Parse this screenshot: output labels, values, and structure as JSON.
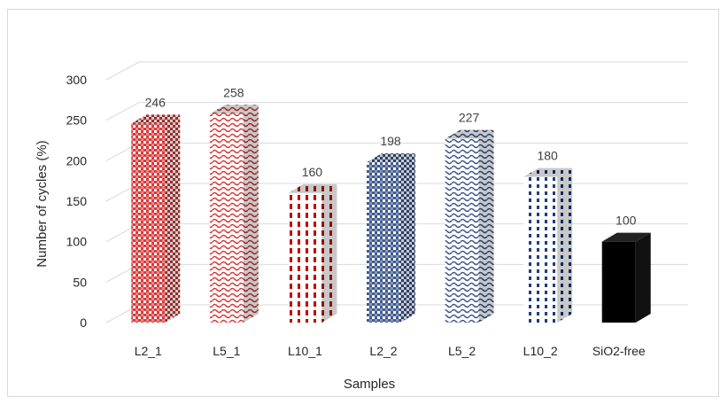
{
  "chart_data": {
    "type": "bar",
    "title": "",
    "xlabel": "Samples",
    "ylabel": "Number of cycles (%)",
    "ylim": [
      0,
      300
    ],
    "yticks": [
      0,
      50,
      100,
      150,
      200,
      250,
      300
    ],
    "grid": true,
    "legend": "none",
    "categories": [
      "L2_1",
      "L5_1",
      "L10_1",
      "L2_2",
      "L5_2",
      "L10_2",
      "SiO2-free"
    ],
    "values": [
      246,
      258,
      160,
      198,
      227,
      180,
      100
    ],
    "bar_styles": [
      {
        "pattern": "checker",
        "color": "#d93a3a"
      },
      {
        "pattern": "wave",
        "color": "#d93a3a"
      },
      {
        "pattern": "dash-vertical",
        "color": "#c00000"
      },
      {
        "pattern": "checker",
        "color": "#3f5a8f"
      },
      {
        "pattern": "wave",
        "color": "#3f5a8f"
      },
      {
        "pattern": "dot-vertical",
        "color": "#203a80"
      },
      {
        "pattern": "solid",
        "color": "#000000"
      }
    ]
  }
}
